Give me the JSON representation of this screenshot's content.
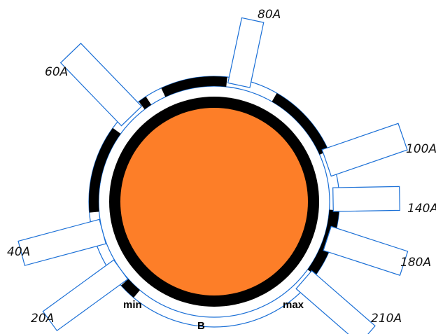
{
  "knob": {
    "fill": "#FD7E28",
    "ring": "#000000"
  },
  "labels": {
    "min": "min",
    "max": "max",
    "center": "B"
  },
  "positions": [
    {
      "label": "20A"
    },
    {
      "label": "40A"
    },
    {
      "label": "60A"
    },
    {
      "label": "80A"
    },
    {
      "label": "100A"
    },
    {
      "label": "140A"
    },
    {
      "label": "180A"
    },
    {
      "label": "210A"
    }
  ],
  "colors": {
    "stroke": "#1a6fd6",
    "segment": "#000000",
    "background": "#ffffff"
  }
}
